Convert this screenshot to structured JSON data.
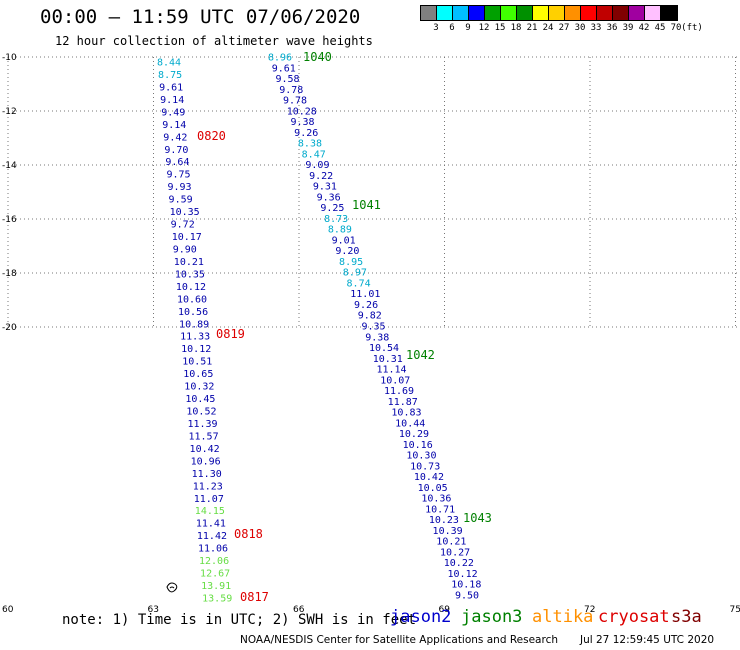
{
  "header": {
    "title": "00:00 – 11:59 UTC 07/06/2020",
    "subtitle": "12 hour collection of altimeter wave heights"
  },
  "colorbar": {
    "colors": [
      "#808080",
      "#00ffff",
      "#00bfff",
      "#0000ff",
      "#00a000",
      "#40ff00",
      "#009000",
      "#ffff00",
      "#ffd000",
      "#ff9000",
      "#ff0000",
      "#c00000",
      "#800000",
      "#a000a0",
      "#ffc0ff",
      "#000000"
    ],
    "labels": [
      "3",
      "6",
      "9",
      "12",
      "15",
      "18",
      "21",
      "24",
      "27",
      "30",
      "33",
      "36",
      "39",
      "42",
      "45",
      "70",
      "(ft)"
    ]
  },
  "map": {
    "y_ticks": [
      "-10",
      "-12",
      "-14",
      "-16",
      "-18",
      "-20"
    ],
    "x_ticks": [
      "60",
      "63",
      "66",
      "69",
      "72",
      "75"
    ]
  },
  "footer": {
    "note": "note:  1) Time is in UTC;  2) SWH is in feet",
    "legend": [
      {
        "name": "jason2",
        "color": "#0000cc"
      },
      {
        "name": "jason3",
        "color": "#008000"
      },
      {
        "name": "altika",
        "color": "#ff9000"
      },
      {
        "name": "cryosat",
        "color": "#dd0000"
      },
      {
        "name": "s3a",
        "color": "#800000"
      }
    ],
    "credit": "NOAA/NESDIS Center for Satellite Applications and Research",
    "timestamp": "Jul 27 12:59:45 UTC 2020"
  },
  "tracks": {
    "cryosat": {
      "color": "#dd0000",
      "pass_labels": [
        "0820",
        "0819",
        "0818",
        "0817"
      ],
      "values": [
        {
          "v": "8.44",
          "c": "#00aacc"
        },
        {
          "v": "8.75",
          "c": "#00aacc"
        },
        {
          "v": "9.61",
          "c": "#0000aa"
        },
        {
          "v": "9.14",
          "c": "#0000aa"
        },
        {
          "v": "9.49",
          "c": "#0000aa"
        },
        {
          "v": "9.14",
          "c": "#0000aa"
        },
        {
          "v": "9.42",
          "c": "#0000aa"
        },
        {
          "v": "9.70",
          "c": "#0000aa"
        },
        {
          "v": "9.64",
          "c": "#0000aa"
        },
        {
          "v": "9.75",
          "c": "#0000aa"
        },
        {
          "v": "9.93",
          "c": "#0000aa"
        },
        {
          "v": "9.59",
          "c": "#0000aa"
        },
        {
          "v": "10.35",
          "c": "#0000aa"
        },
        {
          "v": "9.72",
          "c": "#0000aa"
        },
        {
          "v": "10.17",
          "c": "#0000aa"
        },
        {
          "v": "9.90",
          "c": "#0000aa"
        },
        {
          "v": "10.21",
          "c": "#0000aa"
        },
        {
          "v": "10.35",
          "c": "#0000aa"
        },
        {
          "v": "10.12",
          "c": "#0000aa"
        },
        {
          "v": "10.60",
          "c": "#0000aa"
        },
        {
          "v": "10.56",
          "c": "#0000aa"
        },
        {
          "v": "10.89",
          "c": "#0000aa"
        },
        {
          "v": "11.33",
          "c": "#0000aa"
        },
        {
          "v": "10.12",
          "c": "#0000aa"
        },
        {
          "v": "10.51",
          "c": "#0000aa"
        },
        {
          "v": "10.65",
          "c": "#0000aa"
        },
        {
          "v": "10.32",
          "c": "#0000aa"
        },
        {
          "v": "10.45",
          "c": "#0000aa"
        },
        {
          "v": "10.52",
          "c": "#0000aa"
        },
        {
          "v": "11.39",
          "c": "#0000aa"
        },
        {
          "v": "11.57",
          "c": "#0000aa"
        },
        {
          "v": "10.42",
          "c": "#0000aa"
        },
        {
          "v": "10.96",
          "c": "#0000aa"
        },
        {
          "v": "11.30",
          "c": "#0000aa"
        },
        {
          "v": "11.23",
          "c": "#0000aa"
        },
        {
          "v": "11.07",
          "c": "#0000aa"
        },
        {
          "v": "14.15",
          "c": "#66dd44"
        },
        {
          "v": "11.41",
          "c": "#0000aa"
        },
        {
          "v": "11.42",
          "c": "#0000aa"
        },
        {
          "v": "11.06",
          "c": "#0000aa"
        },
        {
          "v": "12.06",
          "c": "#66dd44"
        },
        {
          "v": "12.67",
          "c": "#66dd44"
        },
        {
          "v": "13.91",
          "c": "#66dd44"
        },
        {
          "v": "13.59",
          "c": "#66dd44"
        }
      ]
    },
    "jason3": {
      "color": "#008000",
      "pass_labels": [
        "1040",
        "1041",
        "1042",
        "1043"
      ],
      "values": [
        {
          "v": "8.96",
          "c": "#00aacc"
        },
        {
          "v": "9.61",
          "c": "#0000aa"
        },
        {
          "v": "9.58",
          "c": "#0000aa"
        },
        {
          "v": "9.78",
          "c": "#0000aa"
        },
        {
          "v": "9.78",
          "c": "#0000aa"
        },
        {
          "v": "10.28",
          "c": "#0000aa"
        },
        {
          "v": "9.38",
          "c": "#0000aa"
        },
        {
          "v": "9.26",
          "c": "#0000aa"
        },
        {
          "v": "8.38",
          "c": "#00aacc"
        },
        {
          "v": "8.47",
          "c": "#00aacc"
        },
        {
          "v": "9.09",
          "c": "#0000aa"
        },
        {
          "v": "9.22",
          "c": "#0000aa"
        },
        {
          "v": "9.31",
          "c": "#0000aa"
        },
        {
          "v": "9.36",
          "c": "#0000aa"
        },
        {
          "v": "9.25",
          "c": "#0000aa"
        },
        {
          "v": "8.73",
          "c": "#00aacc"
        },
        {
          "v": "8.89",
          "c": "#00aacc"
        },
        {
          "v": "9.01",
          "c": "#0000aa"
        },
        {
          "v": "9.20",
          "c": "#0000aa"
        },
        {
          "v": "8.95",
          "c": "#00aacc"
        },
        {
          "v": "8.97",
          "c": "#00aacc"
        },
        {
          "v": "8.74",
          "c": "#00aacc"
        },
        {
          "v": "11.01",
          "c": "#0000aa"
        },
        {
          "v": "9.26",
          "c": "#0000aa"
        },
        {
          "v": "9.82",
          "c": "#0000aa"
        },
        {
          "v": "9.35",
          "c": "#0000aa"
        },
        {
          "v": "9.38",
          "c": "#0000aa"
        },
        {
          "v": "10.54",
          "c": "#0000aa"
        },
        {
          "v": "10.31",
          "c": "#0000aa"
        },
        {
          "v": "11.14",
          "c": "#0000aa"
        },
        {
          "v": "10.07",
          "c": "#0000aa"
        },
        {
          "v": "11.69",
          "c": "#0000aa"
        },
        {
          "v": "11.87",
          "c": "#0000aa"
        },
        {
          "v": "10.83",
          "c": "#0000aa"
        },
        {
          "v": "10.44",
          "c": "#0000aa"
        },
        {
          "v": "10.29",
          "c": "#0000aa"
        },
        {
          "v": "10.16",
          "c": "#0000aa"
        },
        {
          "v": "10.30",
          "c": "#0000aa"
        },
        {
          "v": "10.73",
          "c": "#0000aa"
        },
        {
          "v": "10.42",
          "c": "#0000aa"
        },
        {
          "v": "10.05",
          "c": "#0000aa"
        },
        {
          "v": "10.36",
          "c": "#0000aa"
        },
        {
          "v": "10.71",
          "c": "#0000aa"
        },
        {
          "v": "10.23",
          "c": "#0000aa"
        },
        {
          "v": "10.39",
          "c": "#0000aa"
        },
        {
          "v": "10.21",
          "c": "#0000aa"
        },
        {
          "v": "10.27",
          "c": "#0000aa"
        },
        {
          "v": "10.22",
          "c": "#0000aa"
        },
        {
          "v": "10.12",
          "c": "#0000aa"
        },
        {
          "v": "10.18",
          "c": "#0000aa"
        },
        {
          "v": "9.50",
          "c": "#0000aa"
        }
      ]
    }
  }
}
